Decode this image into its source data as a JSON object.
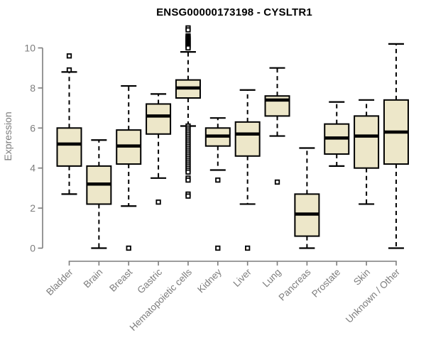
{
  "title": "ENSG00000173198 - CYSLTR1",
  "chart_data": {
    "type": "boxplot",
    "title": "ENSG00000173198 - CYSLTR1",
    "xlabel": "",
    "ylabel": "Expression",
    "ylim": [
      0,
      10
    ],
    "yticks": [
      0,
      2,
      4,
      6,
      8,
      10
    ],
    "grid": false,
    "legend": "none",
    "categories": [
      "Bladder",
      "Brain",
      "Breast",
      "Gastric",
      "Hematopoietic cells",
      "Kidney",
      "Liver",
      "Lung",
      "Pancreas",
      "Prostate",
      "Skin",
      "Unknown / Other"
    ],
    "series": [
      {
        "name": "Bladder",
        "low": 2.7,
        "q1": 4.1,
        "median": 5.2,
        "q3": 6.0,
        "high": 8.8,
        "outliers": [
          8.9,
          9.6
        ]
      },
      {
        "name": "Brain",
        "low": 0,
        "q1": 2.2,
        "median": 3.2,
        "q3": 4.1,
        "high": 5.4,
        "outliers": []
      },
      {
        "name": "Breast",
        "low": 2.1,
        "q1": 4.2,
        "median": 5.1,
        "q3": 5.9,
        "high": 8.1,
        "outliers": [
          0
        ]
      },
      {
        "name": "Gastric",
        "low": 3.5,
        "q1": 5.7,
        "median": 6.6,
        "q3": 7.2,
        "high": 7.7,
        "outliers": [
          2.3
        ]
      },
      {
        "name": "Hematopoietic cells",
        "low": 6.1,
        "q1": 7.5,
        "median": 8.0,
        "q3": 8.4,
        "high": 9.8,
        "outliers": [
          11.0,
          10.9,
          10.6,
          10.55,
          10.5,
          10.45,
          10.4,
          10.35,
          10.3,
          10.25,
          10.2,
          10.15,
          10.1,
          10.05,
          10.0,
          6.1,
          6.0,
          5.9,
          5.8,
          5.7,
          5.6,
          5.5,
          5.4,
          5.3,
          5.2,
          5.1,
          5.0,
          4.9,
          4.8,
          4.7,
          4.6,
          4.5,
          4.4,
          4.3,
          4.2,
          4.1,
          4.0,
          3.9,
          3.8,
          3.5,
          3.4,
          2.7,
          2.6
        ]
      },
      {
        "name": "Kidney",
        "low": 3.9,
        "q1": 5.1,
        "median": 5.6,
        "q3": 6.0,
        "high": 6.5,
        "outliers": [
          3.4,
          0
        ]
      },
      {
        "name": "Liver",
        "low": 2.2,
        "q1": 4.6,
        "median": 5.7,
        "q3": 6.3,
        "high": 7.9,
        "outliers": [
          0
        ]
      },
      {
        "name": "Lung",
        "low": 5.6,
        "q1": 6.6,
        "median": 7.4,
        "q3": 7.6,
        "high": 9.0,
        "outliers": [
          3.3
        ]
      },
      {
        "name": "Pancreas",
        "low": 0,
        "q1": 0.6,
        "median": 1.7,
        "q3": 2.7,
        "high": 5.0,
        "outliers": []
      },
      {
        "name": "Prostate",
        "low": 4.1,
        "q1": 4.7,
        "median": 5.5,
        "q3": 6.2,
        "high": 7.3,
        "outliers": []
      },
      {
        "name": "Skin",
        "low": 2.2,
        "q1": 4.0,
        "median": 5.6,
        "q3": 6.6,
        "high": 7.4,
        "outliers": []
      },
      {
        "name": "Unknown / Other",
        "low": 0,
        "q1": 4.2,
        "median": 5.8,
        "q3": 7.4,
        "high": 10.2,
        "outliers": []
      }
    ],
    "colors": {
      "background": "#FFFFFF",
      "box_fill": "#EDE7C9",
      "box_border": "#000000",
      "median": "#000000",
      "whisker": "#000000",
      "outlier_stroke": "#000000",
      "outlier_fill": "#FFFFFF",
      "axis": "#7D7D7D",
      "tick_label": "#7D7D7D",
      "title": "#000000"
    }
  }
}
